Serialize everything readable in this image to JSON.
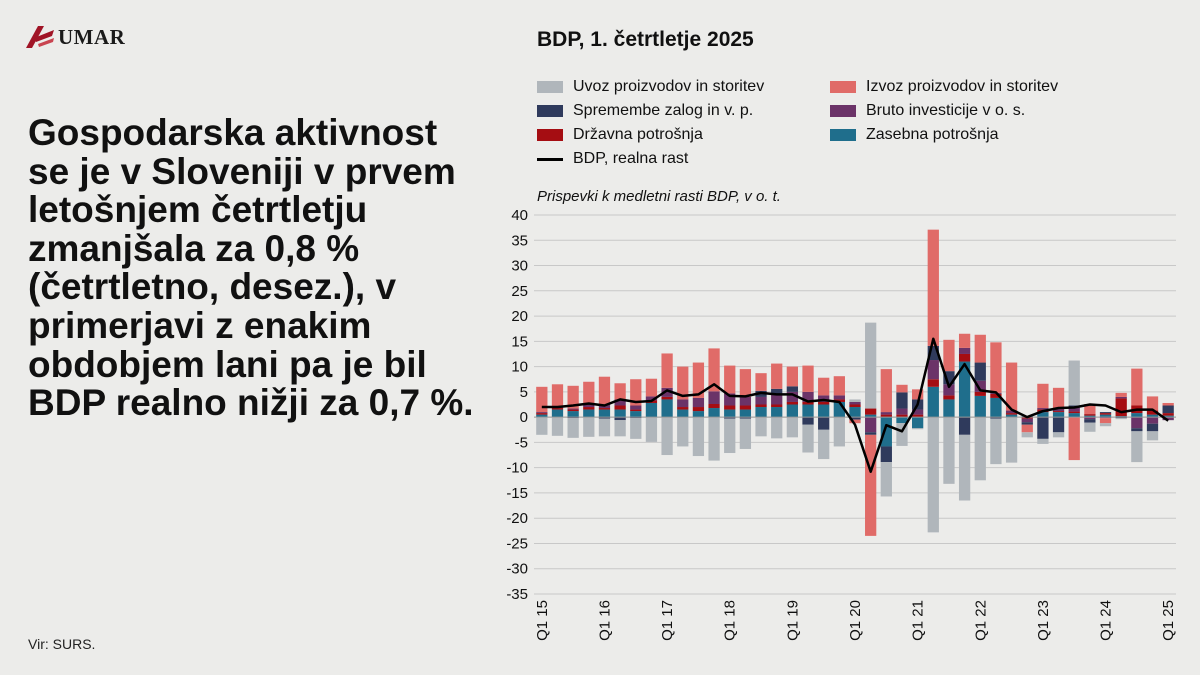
{
  "logo": {
    "text": "UMAR",
    "brand_color": "#a01426"
  },
  "headline": "Gospodarska aktivnost se je v Sloveniji v prvem letošnjem četrtletju zmanjšala za 0,8 % (četrtletno, desez.), v primerjavi z enakim obdobjem lani pa je bil BDP realno nižji za 0,7 %.",
  "source": "Vir: SURS.",
  "chart_data": {
    "type": "bar",
    "title": "BDP, 1. četrtletje 2025",
    "subtitle": "Prispevki k medletni rasti BDP, v o. t.",
    "ylim": [
      -35,
      40
    ],
    "yticks": [
      40,
      35,
      30,
      25,
      20,
      15,
      10,
      5,
      0,
      -5,
      -10,
      -15,
      -20,
      -25,
      -30,
      -35
    ],
    "grid": true,
    "legend_position": "top",
    "x": [
      "Q1 15",
      "Q2 15",
      "Q3 15",
      "Q4 15",
      "Q1 16",
      "Q2 16",
      "Q3 16",
      "Q4 16",
      "Q1 17",
      "Q2 17",
      "Q3 17",
      "Q4 17",
      "Q1 18",
      "Q2 18",
      "Q3 18",
      "Q4 18",
      "Q1 19",
      "Q2 19",
      "Q3 19",
      "Q4 19",
      "Q1 20",
      "Q2 20",
      "Q3 20",
      "Q4 20",
      "Q1 21",
      "Q2 21",
      "Q3 21",
      "Q4 21",
      "Q1 22",
      "Q2 22",
      "Q3 22",
      "Q4 22",
      "Q1 23",
      "Q2 23",
      "Q3 23",
      "Q4 23",
      "Q1 24",
      "Q2 24",
      "Q3 24",
      "Q4 24",
      "Q1 25"
    ],
    "xtick_labels": [
      "Q1 15",
      "Q1 16",
      "Q1 17",
      "Q1 18",
      "Q1 19",
      "Q1 20",
      "Q1 21",
      "Q1 22",
      "Q1 23",
      "Q1 24",
      "Q1 25"
    ],
    "stacked_series": [
      {
        "name": "Zasebna potrošnja",
        "color": "#1f6e8c",
        "values": [
          0.5,
          1.5,
          1.2,
          1.5,
          1.5,
          1.5,
          1.2,
          2.8,
          3.5,
          1.5,
          1.2,
          1.8,
          1.5,
          1.5,
          2,
          2,
          2.5,
          2.5,
          2.5,
          3,
          2,
          0.5,
          -5.8,
          -1.2,
          -2.2,
          6,
          3.5,
          11,
          4.2,
          3.8,
          0.5,
          0.2,
          1,
          1,
          0.8,
          0.3,
          0.5,
          0.2,
          0.8,
          0.5,
          0.3
        ]
      },
      {
        "name": "Državna potrošnja",
        "color": "#a50d12",
        "values": [
          0.3,
          0.3,
          0.3,
          0.5,
          0.3,
          0.8,
          0.3,
          0.5,
          0.5,
          0.5,
          0.8,
          0.8,
          0.8,
          0.8,
          0.5,
          0.5,
          0.5,
          0.5,
          0.5,
          0.5,
          0.5,
          1.2,
          0.5,
          0.5,
          0.5,
          1.5,
          0.8,
          1.5,
          0.8,
          0.8,
          0.3,
          -0.3,
          0.5,
          0.2,
          0.3,
          0.3,
          0.3,
          3.5,
          1.5,
          0.8,
          0.5
        ]
      },
      {
        "name": "Bruto investicije v o. s.",
        "color": "#6b3368",
        "values": [
          0.2,
          0.2,
          0.2,
          0.5,
          0.7,
          1.2,
          0.8,
          0.8,
          1.8,
          1.5,
          1.8,
          2.5,
          2.4,
          1.7,
          1.5,
          2,
          2,
          2,
          1.3,
          0.8,
          0.5,
          -3,
          0.5,
          1.2,
          1,
          3.8,
          2.2,
          1.2,
          2.2,
          0.2,
          0.5,
          -0.7,
          0.3,
          0.4,
          0.8,
          -0.4,
          -0.2,
          0.3,
          -2.2,
          -1.3,
          -0.6
        ]
      },
      {
        "name": "Spremembe zalog in v. p.",
        "color": "#2f3a5c",
        "values": [
          0,
          0,
          -0.2,
          0,
          -0.3,
          -0.6,
          -0.2,
          0,
          0,
          0,
          0,
          0,
          -0.3,
          -0.3,
          1.2,
          1.1,
          1.1,
          -1.5,
          -2.5,
          0,
          -0.5,
          -0.5,
          -3.1,
          3.2,
          2,
          2.8,
          2.6,
          -3.5,
          3.6,
          -0.3,
          0,
          -0.5,
          -4.3,
          -3,
          0.4,
          -0.7,
          0.2,
          -0.2,
          -0.6,
          -1.5,
          1.5
        ]
      },
      {
        "name": "Izvoz proizvodov in storitev",
        "color": "#e06b68",
        "values": [
          5,
          4.5,
          4.5,
          4.5,
          5.5,
          3.2,
          5.2,
          3.5,
          6.8,
          6.5,
          7,
          8.5,
          5.5,
          5.5,
          3.5,
          5,
          3.9,
          5.2,
          3.5,
          3.8,
          -0.7,
          -20,
          8.5,
          1.5,
          2,
          23,
          6.2,
          2.8,
          5.5,
          10,
          9.5,
          -1.5,
          4.8,
          4.2,
          -8.5,
          2,
          -1,
          0.8,
          7.3,
          2.8,
          0.5
        ]
      },
      {
        "name": "Uvoz proizvodov in storitev",
        "color": "#b0b6bb",
        "values": [
          -3.5,
          -3.7,
          -3.9,
          -3.9,
          -3.5,
          -3.2,
          -4.1,
          -4.9,
          -7.5,
          -5.8,
          -7.7,
          -8.6,
          -6.8,
          -6,
          -3.8,
          -4.2,
          -4,
          -5.5,
          -5.8,
          -5.8,
          0.5,
          17,
          -6.8,
          -4.5,
          -0.2,
          -22.8,
          -13.2,
          -13,
          -12.5,
          -9,
          -9,
          -1,
          -1,
          -1,
          8.9,
          -1.8,
          -0.6,
          -0.2,
          -6.1,
          -1.8,
          0
        ]
      }
    ],
    "line_series": {
      "name": "BDP, realna rast",
      "color": "#000000",
      "values": [
        2,
        2,
        2.3,
        2.7,
        2.3,
        3.5,
        3,
        3.2,
        5.3,
        4.2,
        4.5,
        6.5,
        4.2,
        4.1,
        4.8,
        4.5,
        4.5,
        3.1,
        3.4,
        3,
        -1.5,
        -10.8,
        -1.6,
        -2.8,
        2.5,
        15.5,
        6,
        10.5,
        5.3,
        4.9,
        1.5,
        0,
        1.2,
        1.8,
        1.9,
        2.5,
        2.3,
        1,
        1.5,
        1.5,
        -0.7
      ]
    }
  }
}
